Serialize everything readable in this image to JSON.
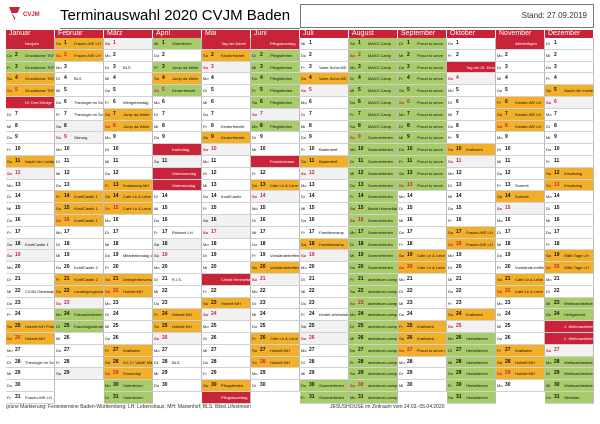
{
  "header": {
    "logo_text": "CVJM",
    "title": "Terminauswahl 2020   CVJM Baden",
    "stand": "Stand: 27.09.2019"
  },
  "colors": {
    "brand_red": "#c9233a",
    "event_yellow": "#f2b02a",
    "event_green": "#a8cc6a",
    "weekend_gray": "#f1f1f1",
    "holiday_gray": "#c9c9c9"
  },
  "footer": {
    "left": "grüne Markierung: Ferientermine Baden-Württemberg; LH: Lebenshaus; MH: Marienhof; BLS: Bibel.Lifestream",
    "right": "JESUSHOUSE im Zeitraum vom 24.03.-05.04.2020"
  },
  "months": [
    {
      "name": "Januar",
      "first_weekday": 2,
      "days": 31,
      "events": {
        "1": {
          "t": "Neujahr",
          "c": "r"
        },
        "2": {
          "t": "Grundkurse TKF 1 MH",
          "c": "g"
        },
        "3": {
          "t": "Grundkurse TKF 1 MH",
          "c": "g"
        },
        "4": {
          "t": "Grundkurse TKF 1 MH",
          "c": "y"
        },
        "5": {
          "t": "Grundkurse TKF 1 MH",
          "c": "y"
        },
        "6": {
          "t": "Hl. Drei Könige",
          "c": "r"
        },
        "11": {
          "t": "Nacht der Lichter",
          "c": "y"
        },
        "18": {
          "t": "KonfiCastle 1",
          "c": ""
        },
        "22": {
          "t": "CVJM Gebetsabend",
          "c": ""
        },
        "25": {
          "t": "Hofzeit MH Prüfen",
          "c": "y"
        },
        "26": {
          "t": "Hofzeit MH",
          "c": "y"
        },
        "28": {
          "t": "Theologie im Schwarzwald",
          "c": ""
        },
        "31": {
          "t": "Frauen-WE LH",
          "c": ""
        }
      }
    },
    {
      "name": "Februar",
      "first_weekday": 5,
      "days": 29,
      "events": {
        "1": {
          "t": "Frauen-WE LH",
          "c": "y"
        },
        "2": {
          "t": "Frauen-WE LH",
          "c": "y"
        },
        "4": {
          "t": "BLS",
          "c": ""
        },
        "6": {
          "t": "Theologie im Schwarzwald",
          "c": ""
        },
        "7": {
          "t": "Theologie im Schwarzwald",
          "c": ""
        },
        "9": {
          "t": "Sitzung",
          "c": ""
        },
        "14": {
          "t": "KonfiCastle 1",
          "c": "y"
        },
        "15": {
          "t": "KonfiCastle 1",
          "c": "y"
        },
        "16": {
          "t": "KonfiCastle 1",
          "c": "y"
        },
        "20": {
          "t": "KonfiCastle 2",
          "c": ""
        },
        "21": {
          "t": "KonfiCastle 2",
          "c": "y"
        },
        "22": {
          "t": "Landesjungschartag",
          "c": "y"
        },
        "24": {
          "t": "Fasnachtsferien",
          "c": "g"
        },
        "25": {
          "t": "Faschingsdienstag",
          "c": "g"
        }
      }
    },
    {
      "name": "März",
      "first_weekday": 6,
      "days": 31,
      "events": {
        "3": {
          "t": "BLS",
          "c": ""
        },
        "6": {
          "t": "Weltgebetstag",
          "c": ""
        },
        "7": {
          "t": "Jump da Welle",
          "c": "y"
        },
        "8": {
          "t": "Jump da Welle",
          "c": "y"
        },
        "13": {
          "t": "Knastsong MH",
          "c": "y"
        },
        "14": {
          "t": "Cafe Lir & Lebe",
          "c": "y"
        },
        "15": {
          "t": "Cafe Lir & Lebe",
          "c": "y"
        },
        "19": {
          "t": "Mitarbeitendag LH",
          "c": ""
        },
        "21": {
          "t": "Delegiertenversammlung",
          "c": "y"
        },
        "22": {
          "t": "Hofzeit MH",
          "c": "y"
        },
        "27": {
          "t": "Kraftwerk",
          "c": "y"
        },
        "28": {
          "t": "KC 2 / VABE Mitgliedertreff",
          "c": "y"
        },
        "29": {
          "t": "Powerday",
          "c": "y"
        },
        "30": {
          "t": "Osterferien",
          "c": "g"
        },
        "31": {
          "t": "Osterferien",
          "c": "g"
        }
      }
    },
    {
      "name": "April",
      "first_weekday": 2,
      "days": 30,
      "events": {
        "1": {
          "t": "Osterferien",
          "c": "g"
        },
        "3": {
          "t": "Jump da Welle",
          "c": "g"
        },
        "4": {
          "t": "Jump da Welle",
          "c": "y"
        },
        "5": {
          "t": "Kinderfreizeit",
          "c": "g"
        },
        "10": {
          "t": "Karfreitag",
          "c": "r"
        },
        "12": {
          "t": "Ostersonntag",
          "c": "r"
        },
        "13": {
          "t": "Ostermontag",
          "c": "r"
        },
        "17": {
          "t": "Rüstzeit LH",
          "c": ""
        },
        "21": {
          "t": "R.I.S.",
          "c": ""
        },
        "24": {
          "t": "Hofzeit MH",
          "c": "y"
        },
        "25": {
          "t": "Hofzeit MH",
          "c": "y"
        },
        "28": {
          "t": "BLS",
          "c": ""
        }
      }
    },
    {
      "name": "Mai",
      "first_weekday": 4,
      "days": 31,
      "events": {
        "1": {
          "t": "Tag der Arbeit",
          "c": "r"
        },
        "2": {
          "t": "Kinderfreizeit",
          "c": "y"
        },
        "8": {
          "t": "Kinderfreizeit",
          "c": ""
        },
        "9": {
          "t": "Kinderfreizeit",
          "c": "y"
        },
        "14": {
          "t": "KonfiCastle",
          "c": ""
        },
        "21": {
          "t": "Christi Himmelfahrt",
          "c": "r"
        },
        "23": {
          "t": "Hofzeit MH",
          "c": "y"
        },
        "30": {
          "t": "Pfingstferien",
          "c": "y"
        },
        "31": {
          "t": "Pfingstsonntag",
          "c": "r"
        }
      }
    },
    {
      "name": "Juni",
      "first_weekday": 0,
      "days": 30,
      "events": {
        "1": {
          "t": "Pfingstmontag",
          "c": "r"
        },
        "2": {
          "t": "Pfingstferien",
          "c": "g"
        },
        "3": {
          "t": "Pfingstferien",
          "c": "g"
        },
        "4": {
          "t": "Pfingstferien",
          "c": "g"
        },
        "5": {
          "t": "Pfingstferien",
          "c": "g"
        },
        "6": {
          "t": "Pfingstferien",
          "c": "g"
        },
        "8": {
          "t": "Pfingstferien",
          "c": "g"
        },
        "11": {
          "t": "Fronleichnam",
          "c": "r"
        },
        "13": {
          "t": "Cafe Lir & Lebe",
          "c": "y"
        },
        "19": {
          "t": "Vorständetreffen",
          "c": ""
        },
        "20": {
          "t": "Vorständetreffen",
          "c": "y"
        },
        "26": {
          "t": "Cafe Lir & Lebe",
          "c": "y"
        },
        "27": {
          "t": "Hofzeit MH",
          "c": "y"
        },
        "28": {
          "t": "Hofzeit MH",
          "c": "y"
        }
      }
    },
    {
      "name": "Juli",
      "first_weekday": 2,
      "days": 31,
      "events": {
        "3": {
          "t": "Vater-Sohn-WE",
          "c": ""
        },
        "4": {
          "t": "Vater-Sohn-WE",
          "c": "y"
        },
        "10": {
          "t": "Badentreff",
          "c": ""
        },
        "11": {
          "t": "Badentreff",
          "c": "y"
        },
        "17": {
          "t": "Familiencamp",
          "c": ""
        },
        "18": {
          "t": "Familiencamp",
          "c": "y"
        },
        "24": {
          "t": "Kinder-erlebnistag",
          "c": ""
        },
        "30": {
          "t": "Sommerferien",
          "c": "g"
        },
        "31": {
          "t": "Sommerferien",
          "c": "g"
        }
      }
    },
    {
      "name": "August",
      "first_weekday": 5,
      "days": 31,
      "events": {
        "1": {
          "t": "MAXX Camp",
          "c": "g"
        },
        "2": {
          "t": "MAXX Camp",
          "c": "g"
        },
        "3": {
          "t": "MAXX Camp",
          "c": "g"
        },
        "4": {
          "t": "MAXX Camp",
          "c": "g"
        },
        "5": {
          "t": "MAXX Camp",
          "c": "g"
        },
        "6": {
          "t": "MAXX Camp",
          "c": "g"
        },
        "7": {
          "t": "MAXX Camp",
          "c": "g"
        },
        "8": {
          "t": "MAXX Camp",
          "c": "g"
        },
        "9": {
          "t": "Sommerferien",
          "c": "g"
        },
        "10": {
          "t": "Sommerferien",
          "c": "g"
        },
        "11": {
          "t": "Sommerferien",
          "c": "g"
        },
        "12": {
          "t": "Sommerferien",
          "c": "g"
        },
        "13": {
          "t": "Sommerferien",
          "c": "g"
        },
        "14": {
          "t": "Sommerferien",
          "c": "g"
        },
        "15": {
          "t": "Mariä Himmelfahrt",
          "c": "g"
        },
        "16": {
          "t": "Sommerferien",
          "c": "g"
        },
        "17": {
          "t": "Sommerferien",
          "c": "g"
        },
        "18": {
          "t": "Sommerferien",
          "c": "g"
        },
        "19": {
          "t": "Sommerferien",
          "c": "g"
        },
        "20": {
          "t": "Sommerferien",
          "c": "g"
        },
        "21": {
          "t": "abenteuer-camp",
          "c": "g"
        },
        "22": {
          "t": "abenteuer-camp",
          "c": "g"
        },
        "23": {
          "t": "abenteuer-camp",
          "c": "g"
        },
        "24": {
          "t": "abenteuer-camp",
          "c": "g"
        },
        "25": {
          "t": "abenteuer-camp",
          "c": "g"
        },
        "26": {
          "t": "abenteuer-camp",
          "c": "g"
        },
        "27": {
          "t": "abenteuer-camp",
          "c": "g"
        },
        "28": {
          "t": "abenteuer-camp",
          "c": "g"
        },
        "29": {
          "t": "abenteuer-camp",
          "c": "g"
        },
        "30": {
          "t": "abenteuer-camp",
          "c": "g"
        },
        "31": {
          "t": "abenteuer-camp",
          "c": "g"
        }
      }
    },
    {
      "name": "September",
      "first_weekday": 1,
      "days": 30,
      "events": {
        "1": {
          "t": "Proud to serve",
          "c": "g"
        },
        "2": {
          "t": "Proud to serve",
          "c": "g"
        },
        "3": {
          "t": "Proud to serve",
          "c": "g"
        },
        "4": {
          "t": "Proud to serve",
          "c": "g"
        },
        "5": {
          "t": "Proud to serve",
          "c": "g"
        },
        "6": {
          "t": "Proud to serve",
          "c": "g"
        },
        "7": {
          "t": "Proud to serve",
          "c": "g"
        },
        "8": {
          "t": "Proud to serve",
          "c": "g"
        },
        "9": {
          "t": "Proud to serve",
          "c": "g"
        },
        "10": {
          "t": "Proud to serve",
          "c": "g"
        },
        "11": {
          "t": "Proud to serve",
          "c": "g"
        },
        "12": {
          "t": "Proud to serve",
          "c": "g"
        },
        "13": {
          "t": "Proud to serve",
          "c": "g"
        },
        "19": {
          "t": "Cafe Lir & Lebe",
          "c": "y"
        },
        "20": {
          "t": "Cafe Lir & Lebe",
          "c": "y"
        },
        "25": {
          "t": "Kraftwerk",
          "c": "y"
        },
        "26": {
          "t": "Kraftwerk",
          "c": "y"
        },
        "27": {
          "t": "Proud to serve / Frauen-WE",
          "c": "y"
        }
      }
    },
    {
      "name": "Oktober",
      "first_weekday": 3,
      "days": 31,
      "events": {
        "3": {
          "t": "Tag der Dt. Einheit",
          "c": "r"
        },
        "10": {
          "t": "Kraftwerk",
          "c": "y"
        },
        "17": {
          "t": "Frauen-WE LH",
          "c": "y"
        },
        "18": {
          "t": "Frauen-WE LH",
          "c": "y"
        },
        "24": {
          "t": "Kraftwerk",
          "c": "y"
        },
        "26": {
          "t": "Herbstferien",
          "c": "g"
        },
        "27": {
          "t": "Herbstferien",
          "c": "g"
        },
        "28": {
          "t": "Herbstferien",
          "c": "g"
        },
        "29": {
          "t": "Herbstferien",
          "c": "g"
        },
        "30": {
          "t": "Herbstferien",
          "c": "g"
        },
        "31": {
          "t": "Herbstferien",
          "c": "g"
        }
      }
    },
    {
      "name": "November",
      "first_weekday": 6,
      "days": 30,
      "events": {
        "1": {
          "t": "Allerheiligen",
          "c": "r"
        },
        "6": {
          "t": "Kreativ-WE LH",
          "c": "y"
        },
        "7": {
          "t": "Kreativ-WE LH",
          "c": "y"
        },
        "8": {
          "t": "Kreativ-WE LH",
          "c": "y"
        },
        "13": {
          "t": "Summit",
          "c": ""
        },
        "14": {
          "t": "Summit",
          "c": "y"
        },
        "20": {
          "t": "Vorstände-treffen",
          "c": ""
        },
        "21": {
          "t": "Cafe Lir & Lebe",
          "c": "y"
        },
        "22": {
          "t": "Cafe Lir & Lebe",
          "c": "y"
        },
        "27": {
          "t": "Kraftwerk",
          "c": "y"
        },
        "28": {
          "t": "Hofzeit MH",
          "c": "y"
        },
        "29": {
          "t": "Hofzeit MH",
          "c": "y"
        }
      }
    },
    {
      "name": "Dezember",
      "first_weekday": 1,
      "days": 31,
      "events": {
        "5": {
          "t": "Nacht der Lichter",
          "c": "y"
        },
        "12": {
          "t": "Kreativtag",
          "c": "y"
        },
        "13": {
          "t": "Kreativtag",
          "c": "y"
        },
        "19": {
          "t": "Stille Tage LH",
          "c": "y"
        },
        "20": {
          "t": "Stille Tage LH",
          "c": "y"
        },
        "23": {
          "t": "Weihnachtsferien",
          "c": "g"
        },
        "24": {
          "t": "Heiligabend",
          "c": "g"
        },
        "25": {
          "t": "1. Weihnachtsfeiertag",
          "c": "r"
        },
        "26": {
          "t": "2. Weihnachtsfeiertag",
          "c": "r"
        },
        "28": {
          "t": "Weihnachtsferien",
          "c": "g"
        },
        "29": {
          "t": "Weihnachtsferien",
          "c": "g"
        },
        "30": {
          "t": "Weihnachtsferien",
          "c": "g"
        },
        "31": {
          "t": "Silvester",
          "c": "g"
        }
      }
    }
  ],
  "weekday_abbrev": [
    "Mo",
    "Di",
    "Mi",
    "Do",
    "Fr",
    "Sa",
    "So"
  ]
}
